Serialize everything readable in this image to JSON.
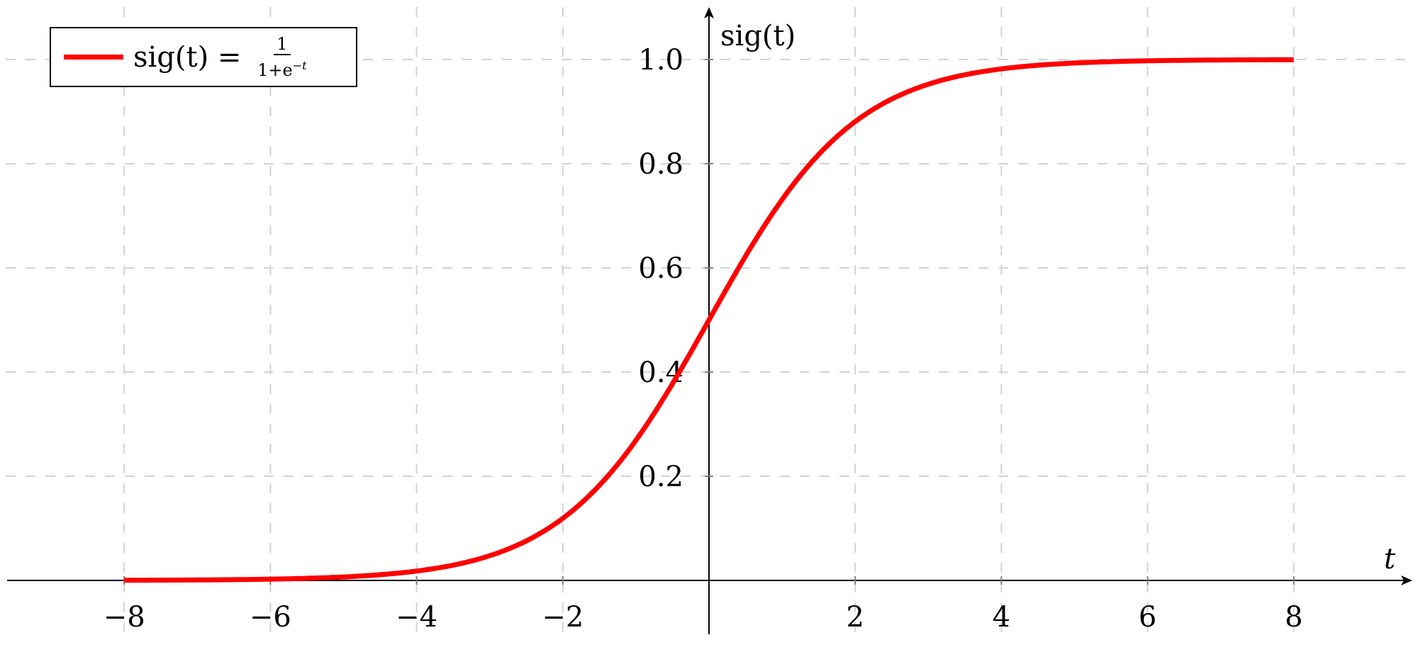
{
  "chart_data": {
    "type": "line",
    "title": "",
    "xlabel": "t",
    "ylabel": "sig(t)",
    "xlim": [
      -9.6,
      9.6
    ],
    "ylim": [
      0,
      1.1
    ],
    "x_ticks": [
      -8,
      -6,
      -4,
      -2,
      2,
      4,
      6,
      8
    ],
    "x_tick_labels": [
      "−8",
      "−6",
      "−4",
      "−2",
      "2",
      "4",
      "6",
      "8"
    ],
    "y_ticks": [
      0.2,
      0.4,
      0.6,
      0.8,
      1.0
    ],
    "y_tick_labels": [
      "0.2",
      "0.4",
      "0.6",
      "0.8",
      "1.0"
    ],
    "grid": true,
    "legend_position": "top-left",
    "series": [
      {
        "name": "sig(t) = 1/(1+e^−t)",
        "function": "1/(1+exp(-t))",
        "domain": [
          -8,
          8
        ],
        "color": "#ff0000",
        "x": [
          -8,
          -6,
          -4,
          -2,
          -1,
          0,
          1,
          2,
          4,
          6,
          8
        ],
        "y": [
          0.0003,
          0.0025,
          0.018,
          0.119,
          0.269,
          0.5,
          0.731,
          0.881,
          0.982,
          0.9975,
          0.9997
        ]
      }
    ]
  },
  "legend": {
    "lhs": "sig(t) = ",
    "numerator": "1",
    "denominator": "1+e",
    "exponent": "−t"
  }
}
